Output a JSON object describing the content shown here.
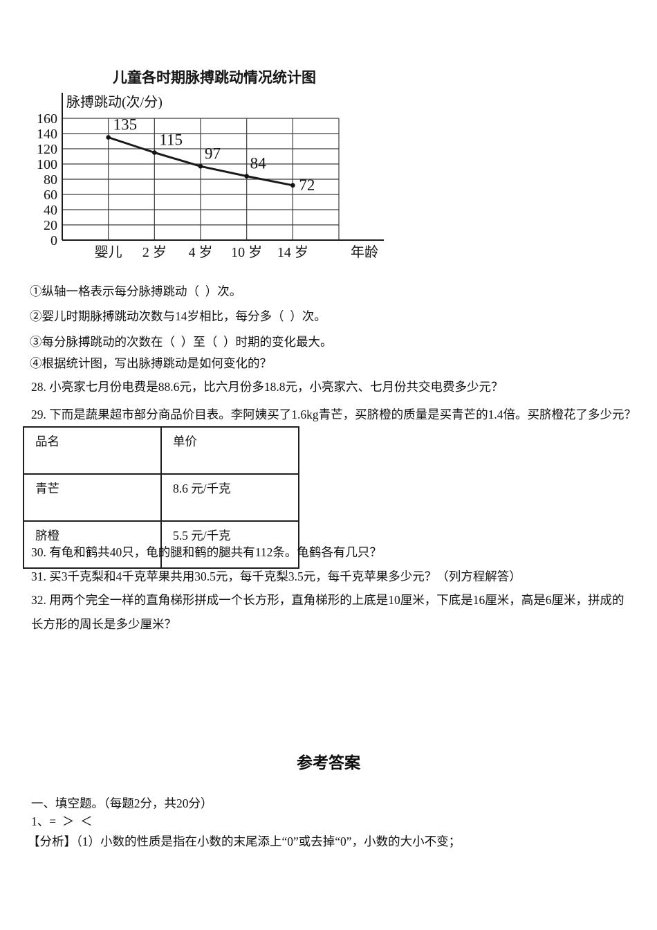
{
  "chart_data": {
    "type": "line",
    "title": "儿童各时期脉搏跳动情况统计图",
    "categories": [
      "婴儿",
      "2 岁",
      "4 岁",
      "10 岁",
      "14 岁"
    ],
    "values": [
      135,
      115,
      97,
      84,
      72
    ],
    "point_labels": [
      "135",
      "115",
      "97",
      "84",
      "72"
    ],
    "xlabel": "年龄",
    "ylabel": "脉搏跳动(次/分)",
    "ylim": [
      0,
      160
    ],
    "ytick_step": 20,
    "yticks": [
      "0",
      "20",
      "40",
      "60",
      "80",
      "100",
      "120",
      "140",
      "160"
    ],
    "grid": true,
    "legend": "none",
    "line_color": "#1a1a1a"
  },
  "questions": {
    "chart_sub_questions": [
      "①纵轴一格表示每分脉搏跳动（  ）次。",
      "②婴儿时期脉搏跳动次数与14岁相比，每分多（  ）次。",
      "③每分脉搏跳动的次数在（  ）至（  ）时期的变化最大。",
      "④根据统计图，写出脉搏跳动是如何变化的？"
    ],
    "q28": "28. 小亮家七月份电费是88.6元，比六月份多18.8元，小亮家六、七月份共交电费多少元？",
    "q29": "29. 下而是蔬果超市部分商品价目表。李阿姨买了1.6kg青芒，买脐橙的质量是买青芒的1.4倍。买脐橙花了多少元？",
    "q30": "30. 有龟和鹤共40只，龟的腿和鹤的腿共有112条。龟鹤各有几只？",
    "q31": "31. 买3千克梨和4千克苹果共用30.5元，每千克梨3.5元，每千克苹果多少元？（列方程解答）",
    "q32_line1": "32. 用两个完全一样的直角梯形拼成一个长方形，直角梯形的上底是10厘米，下底是16厘米，高是6厘米，拼成的",
    "q32_line2": "长方形的周长是多少厘米？"
  },
  "price_table": {
    "headers": [
      "品名",
      "单价"
    ],
    "rows": [
      [
        "青芒",
        "8.6 元/千克"
      ],
      [
        "脐橙",
        "5.5 元/千克"
      ]
    ]
  },
  "answers": {
    "heading": "参考答案",
    "section1": "一、填空题。（每题2分，共20分）",
    "item1": "1、=  ＞  ＜",
    "analysis": "【分析】（1）小数的性质是指在小数的末尾添上“0”或去掉“0”，小数的大小不变；"
  }
}
